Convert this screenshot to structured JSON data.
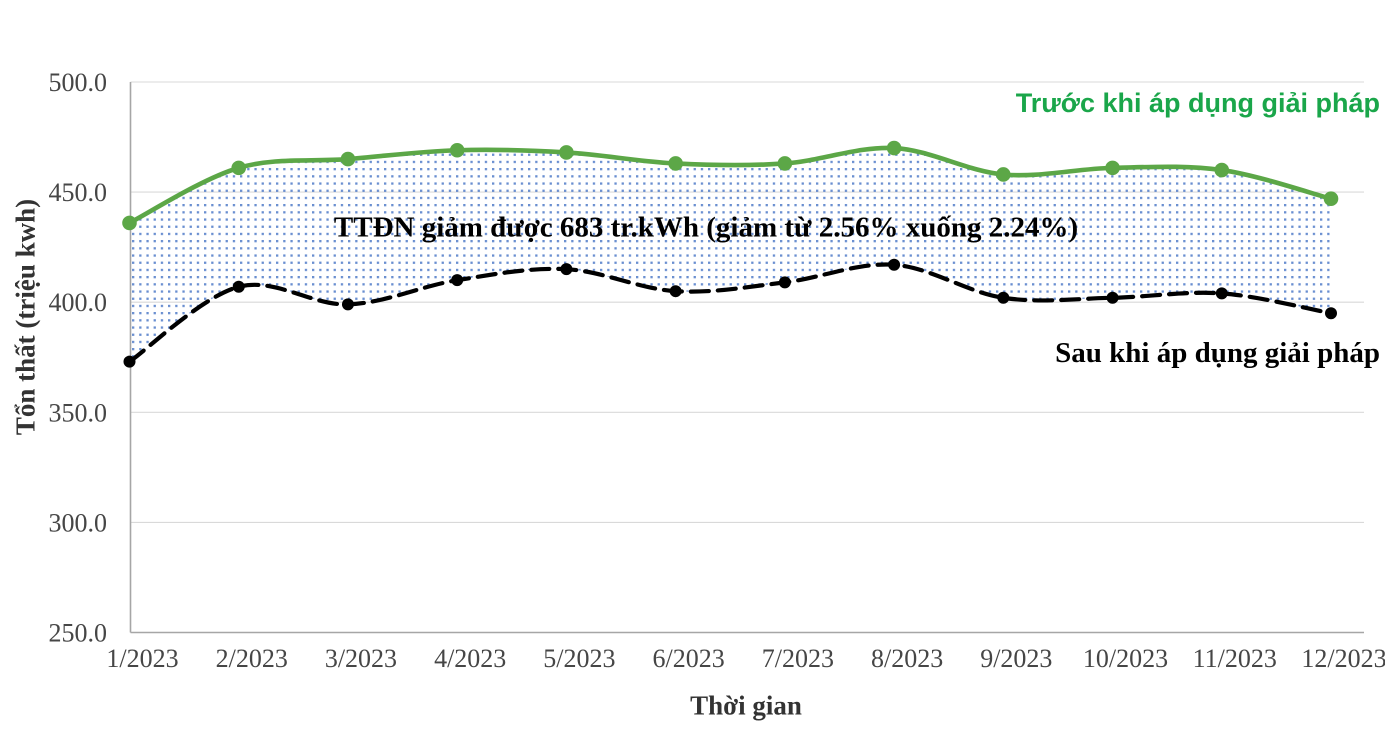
{
  "chart_data": {
    "type": "line",
    "categories": [
      "1/2023",
      "2/2023",
      "3/2023",
      "4/2023",
      "5/2023",
      "6/2023",
      "7/2023",
      "8/2023",
      "9/2023",
      "10/2023",
      "11/2023",
      "12/2023"
    ],
    "series": [
      {
        "name": "Trước khi áp dụng giải pháp",
        "color": "#5CA747",
        "label_color": "#1AA64A",
        "line_style": "solid",
        "marker": "circle",
        "values": [
          436,
          461,
          465,
          469,
          468,
          463,
          463,
          470,
          458,
          461,
          460,
          447
        ]
      },
      {
        "name": "Sau khi áp dụng giải pháp",
        "color": "#000000",
        "label_color": "#000000",
        "line_style": "dashed",
        "marker": "circle",
        "values": [
          373,
          407,
          399,
          410,
          415,
          405,
          409,
          417,
          402,
          402,
          404,
          395
        ]
      }
    ],
    "annotation": "TTĐN giảm được 683 tr.kWh (giảm từ 2.56% xuống 2.24%)",
    "xlabel": "Thời gian",
    "ylabel": "Tổn thất (triệu kwh)",
    "ylim": [
      250.0,
      500.0
    ],
    "ytick_step": 50,
    "yticks": [
      "500.0",
      "450.0",
      "400.0",
      "350.0",
      "300.0",
      "250.0"
    ],
    "grid": "horizontal-only",
    "legend_position": "on-chart-right",
    "fill_between": {
      "style": "dot-pattern",
      "dot_color": "#4472C4",
      "description": "area between the two series filled with small blue dots"
    },
    "colors": {
      "background": "#FFFFFF",
      "gridline": "#D9D9D9",
      "axis_line": "#A6A6A6",
      "tick_text": "#464646",
      "axis_title_text": "#333333",
      "annotation_text": "#000000"
    }
  }
}
